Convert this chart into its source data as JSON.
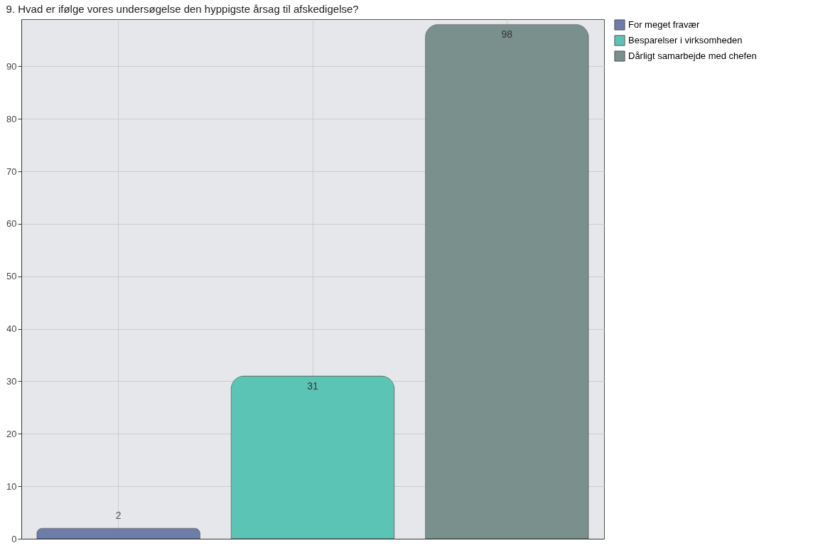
{
  "chart_data": {
    "type": "bar",
    "title": "9. Hvad er ifølge vores undersøgelse den hyppigste årsag til afskedigelse?",
    "categories": [
      null,
      null,
      null
    ],
    "series": [
      {
        "name": "For meget fravær",
        "color": "#6b7da8",
        "values": [
          2,
          null,
          null
        ]
      },
      {
        "name": "Besparelser i virksomheden",
        "color": "#5cc4b4",
        "values": [
          null,
          31,
          null
        ]
      },
      {
        "name": "Dårligt samarbejde med chefen",
        "color": "#7a908c",
        "values": [
          null,
          null,
          98
        ]
      }
    ],
    "ylim": [
      0,
      99
    ],
    "yticks": [
      0,
      10,
      20,
      30,
      40,
      50,
      60,
      70,
      80,
      90
    ],
    "grid": true,
    "legend": "right",
    "tick_labels": "y",
    "data_labels": true
  }
}
